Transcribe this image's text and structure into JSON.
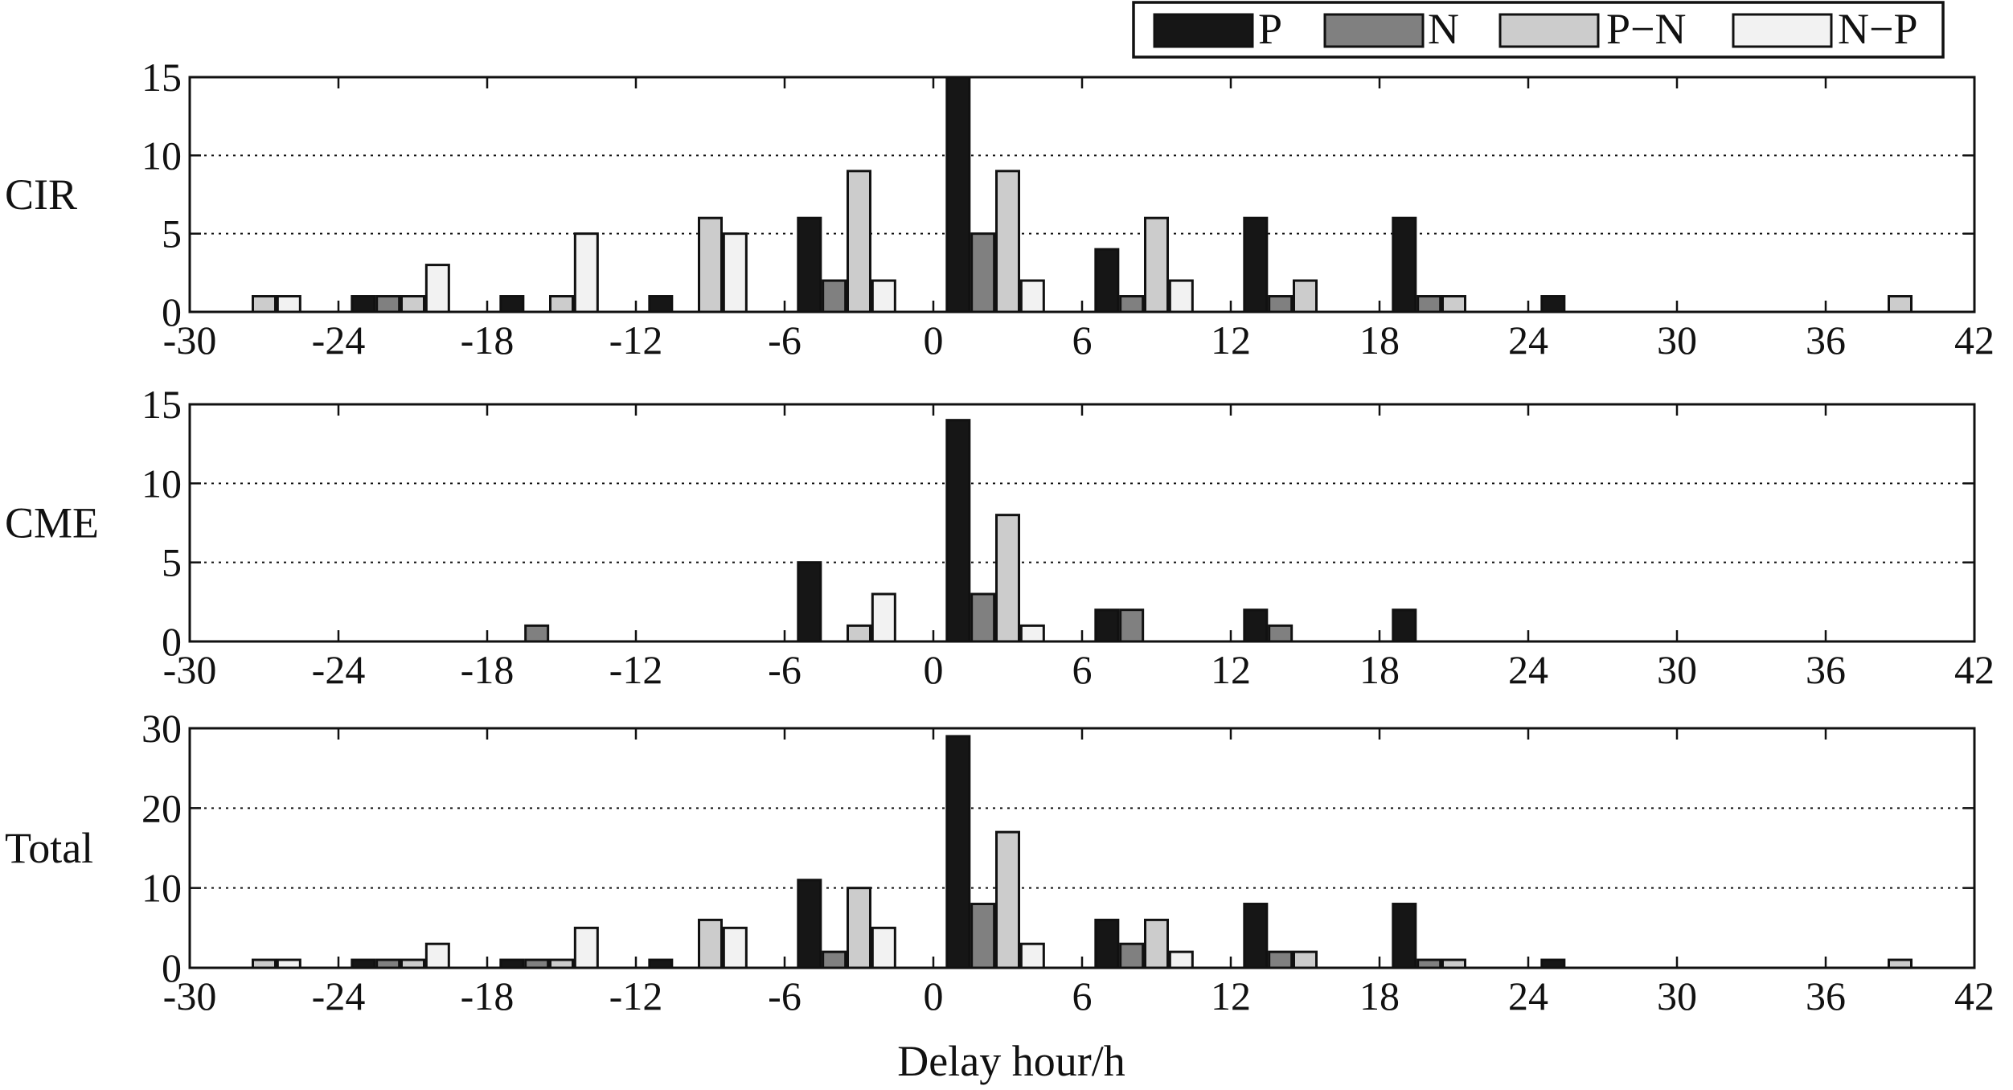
{
  "chart_data": {
    "type": "bar",
    "xlabel": "Delay hour/h",
    "xlim": [
      -30,
      42
    ],
    "xticks": [
      -30,
      -24,
      -18,
      -12,
      -6,
      0,
      6,
      12,
      18,
      24,
      30,
      36,
      42
    ],
    "grid": "horizontal dotted",
    "legend_position": "top-right",
    "series_meta": [
      {
        "name": "P",
        "color": "#161616"
      },
      {
        "name": "N",
        "color": "#808080"
      },
      {
        "name": "P−N",
        "color": "#cccccc"
      },
      {
        "name": "N−P",
        "color": "#f2f2f2"
      }
    ],
    "panels": [
      {
        "ylabel": "CIR",
        "ylim": [
          0,
          15
        ],
        "yticks": [
          0,
          5,
          10,
          15
        ],
        "series": [
          {
            "name": "P",
            "points": [
              [
                -23,
                1
              ],
              [
                -17,
                1
              ],
              [
                -11,
                1
              ],
              [
                -5,
                6
              ],
              [
                1,
                15
              ],
              [
                7,
                4
              ],
              [
                13,
                6
              ],
              [
                19,
                6
              ],
              [
                25,
                1
              ]
            ]
          },
          {
            "name": "N",
            "points": [
              [
                -22,
                1
              ],
              [
                -4,
                2
              ],
              [
                2,
                5
              ],
              [
                8,
                1
              ],
              [
                14,
                1
              ],
              [
                20,
                1
              ]
            ]
          },
          {
            "name": "P−N",
            "points": [
              [
                -27,
                1
              ],
              [
                -21,
                1
              ],
              [
                -15,
                1
              ],
              [
                -9,
                6
              ],
              [
                -3,
                9
              ],
              [
                3,
                9
              ],
              [
                9,
                6
              ],
              [
                15,
                2
              ],
              [
                21,
                1
              ],
              [
                39,
                1
              ]
            ]
          },
          {
            "name": "N−P",
            "points": [
              [
                -26,
                1
              ],
              [
                -20,
                3
              ],
              [
                -14,
                5
              ],
              [
                -8,
                5
              ],
              [
                -2,
                2
              ],
              [
                4,
                2
              ],
              [
                10,
                2
              ]
            ]
          }
        ]
      },
      {
        "ylabel": "CME",
        "ylim": [
          0,
          15
        ],
        "yticks": [
          0,
          5,
          10,
          15
        ],
        "series": [
          {
            "name": "P",
            "points": [
              [
                -5,
                5
              ],
              [
                1,
                14
              ],
              [
                7,
                2
              ],
              [
                13,
                2
              ],
              [
                19,
                2
              ]
            ]
          },
          {
            "name": "N",
            "points": [
              [
                -16,
                1
              ],
              [
                2,
                3
              ],
              [
                8,
                2
              ],
              [
                14,
                1
              ]
            ]
          },
          {
            "name": "P−N",
            "points": [
              [
                -3,
                1
              ],
              [
                3,
                8
              ]
            ]
          },
          {
            "name": "N−P",
            "points": [
              [
                -2,
                3
              ],
              [
                4,
                1
              ]
            ]
          }
        ]
      },
      {
        "ylabel": "Total",
        "ylim": [
          0,
          30
        ],
        "yticks": [
          0,
          10,
          20,
          30
        ],
        "series": [
          {
            "name": "P",
            "points": [
              [
                -23,
                1
              ],
              [
                -17,
                1
              ],
              [
                -11,
                1
              ],
              [
                -5,
                11
              ],
              [
                1,
                29
              ],
              [
                7,
                6
              ],
              [
                13,
                8
              ],
              [
                19,
                8
              ],
              [
                25,
                1
              ]
            ]
          },
          {
            "name": "N",
            "points": [
              [
                -22,
                1
              ],
              [
                -16,
                1
              ],
              [
                -4,
                2
              ],
              [
                2,
                8
              ],
              [
                8,
                3
              ],
              [
                14,
                2
              ],
              [
                20,
                1
              ]
            ]
          },
          {
            "name": "P−N",
            "points": [
              [
                -27,
                1
              ],
              [
                -21,
                1
              ],
              [
                -15,
                1
              ],
              [
                -9,
                6
              ],
              [
                -3,
                10
              ],
              [
                3,
                17
              ],
              [
                9,
                6
              ],
              [
                15,
                2
              ],
              [
                21,
                1
              ],
              [
                39,
                1
              ]
            ]
          },
          {
            "name": "N−P",
            "points": [
              [
                -26,
                1
              ],
              [
                -20,
                3
              ],
              [
                -14,
                5
              ],
              [
                -8,
                5
              ],
              [
                -2,
                5
              ],
              [
                4,
                3
              ],
              [
                10,
                2
              ]
            ]
          }
        ]
      }
    ]
  }
}
